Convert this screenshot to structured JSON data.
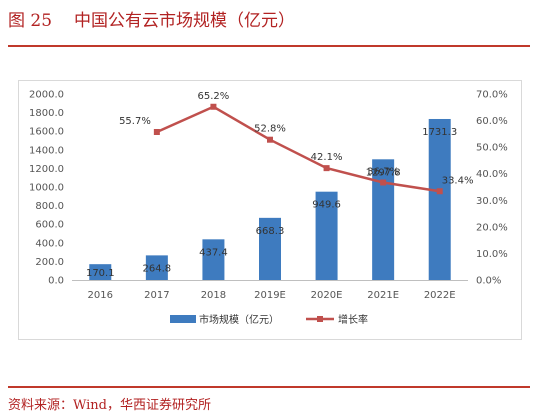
{
  "figure": {
    "number": "图 25",
    "title": "中国公有云市场规模（亿元）"
  },
  "source": "资料来源：Wind，华西证券研究所",
  "chart_data": {
    "type": "bar",
    "categories": [
      "2016",
      "2017",
      "2018",
      "2019E",
      "2020E",
      "2021E",
      "2022E"
    ],
    "series": [
      {
        "name": "市场规模（亿元）",
        "type": "bar",
        "axis": "left",
        "color": "#3e7bbf",
        "values": [
          170.1,
          264.8,
          437.4,
          668.3,
          949.6,
          1297.8,
          1731.3
        ],
        "labels": [
          "170.1",
          "264.8",
          "437.4",
          "668.3",
          "949.6",
          "1297.8",
          "1731.3"
        ]
      },
      {
        "name": "增长率",
        "type": "line",
        "axis": "right",
        "color": "#c0504d",
        "values": [
          null,
          55.7,
          65.2,
          52.8,
          42.1,
          36.7,
          33.4
        ],
        "labels": [
          "",
          "55.7%",
          "65.2%",
          "52.8%",
          "42.1%",
          "36.7%",
          "33.4%"
        ]
      }
    ],
    "y_left": {
      "min": 0,
      "max": 2000,
      "step": 200,
      "ticks": [
        "0.0",
        "200.0",
        "400.0",
        "600.0",
        "800.0",
        "1000.0",
        "1200.0",
        "1400.0",
        "1600.0",
        "1800.0",
        "2000.0"
      ]
    },
    "y_right": {
      "min": 0,
      "max": 70,
      "step": 10,
      "ticks": [
        "0.0%",
        "10.0%",
        "20.0%",
        "30.0%",
        "40.0%",
        "50.0%",
        "60.0%",
        "70.0%"
      ]
    },
    "legend_position": "bottom",
    "grid": false
  }
}
